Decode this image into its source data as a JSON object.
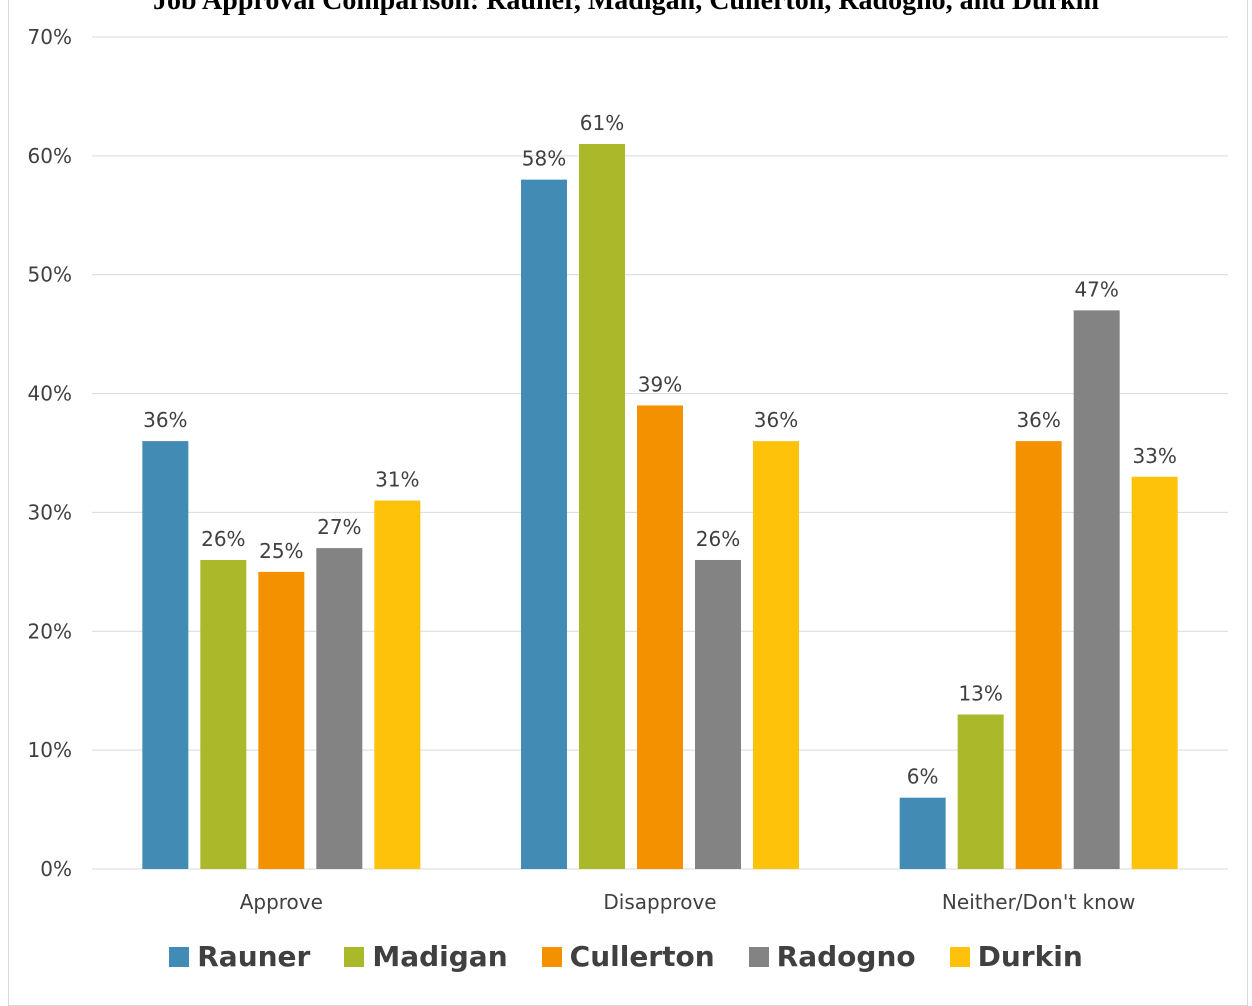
{
  "chart_data": {
    "type": "bar",
    "title": "Job Approval Comparison: Rauner, Madigan, Cullerton, Radogno, and Durkin",
    "categories": [
      "Approve",
      "Disapprove",
      "Neither/Don't know"
    ],
    "series": [
      {
        "name": "Rauner",
        "color": "#428bb5",
        "values": [
          36,
          58,
          6
        ]
      },
      {
        "name": "Madigan",
        "color": "#a9b92a",
        "values": [
          26,
          61,
          13
        ]
      },
      {
        "name": "Cullerton",
        "color": "#f49100",
        "values": [
          25,
          39,
          36
        ]
      },
      {
        "name": "Radogno",
        "color": "#838383",
        "values": [
          27,
          26,
          47
        ]
      },
      {
        "name": "Durkin",
        "color": "#fec20b",
        "values": [
          31,
          36,
          33
        ]
      }
    ],
    "ylim": [
      0,
      70
    ],
    "yticks": [
      "0%",
      "10%",
      "20%",
      "30%",
      "40%",
      "50%",
      "60%",
      "70%"
    ],
    "value_suffix": "%",
    "grid": true,
    "legend_position": "bottom",
    "colors": {
      "gridline": "#d9d9d9",
      "axis_text": "#404040"
    }
  }
}
